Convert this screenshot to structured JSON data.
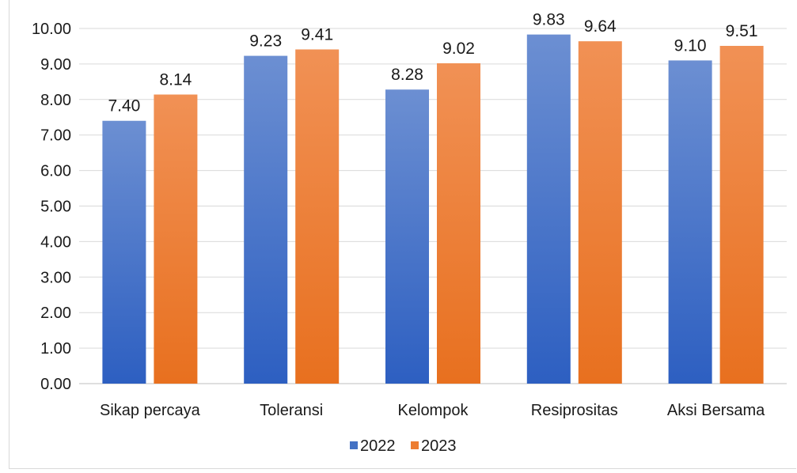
{
  "chart_data": {
    "type": "bar",
    "title": "",
    "xlabel": "",
    "ylabel": "",
    "categories": [
      "Sikap percaya",
      "Toleransi",
      "Kelompok",
      "Resiprositas",
      "Aksi Bersama"
    ],
    "series": [
      {
        "name": "2022",
        "values": [
          7.4,
          9.23,
          8.28,
          9.83,
          9.1
        ],
        "labels": [
          "7.40",
          "9.23",
          "8.28",
          "9.83",
          "9.10"
        ],
        "color": "#4472c4"
      },
      {
        "name": "2023",
        "values": [
          8.14,
          9.41,
          9.02,
          9.64,
          9.51
        ],
        "labels": [
          "8.14",
          "9.41",
          "9.02",
          "9.64",
          "9.51"
        ],
        "color": "#ed7d31"
      }
    ],
    "ylim": [
      0,
      10
    ],
    "yticks": [
      "0.00",
      "1.00",
      "2.00",
      "3.00",
      "4.00",
      "5.00",
      "6.00",
      "7.00",
      "8.00",
      "9.00",
      "10.00"
    ],
    "grid": true,
    "legend_position": "bottom"
  }
}
